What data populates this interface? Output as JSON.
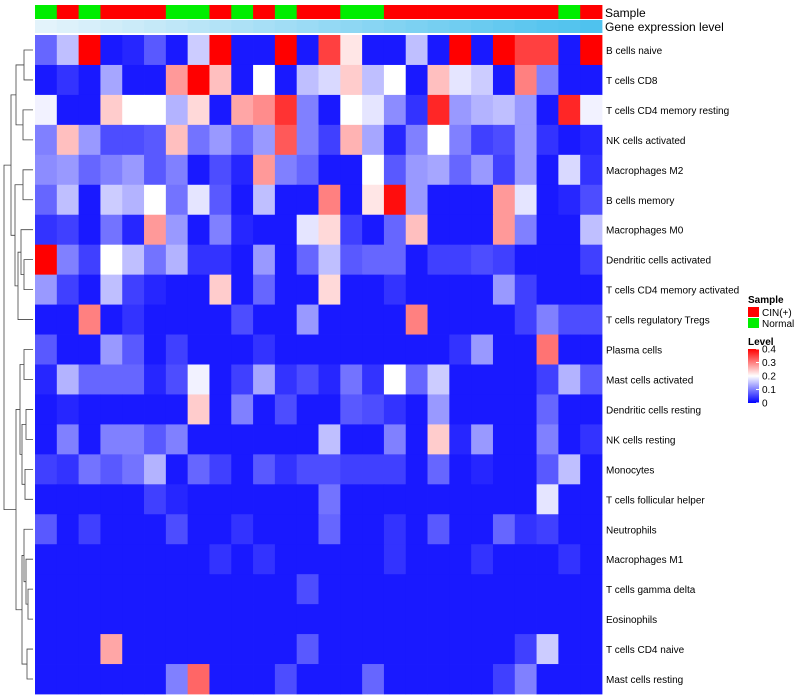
{
  "chart_data": {
    "type": "heatmap",
    "title": "",
    "annotation_tracks": [
      {
        "name": "Sample"
      },
      {
        "name": "Gene expression level"
      }
    ],
    "rows": [
      "B cells naive",
      "T cells CD8",
      "T cells CD4 memory resting",
      "NK cells activated",
      "Macrophages M2",
      "B cells memory",
      "Macrophages M0",
      "Dendritic cells activated",
      "T cells CD4 memory activated",
      "T cells regulatory  Tregs",
      "Plasma cells",
      "Mast cells activated",
      "Dendritic cells resting",
      "NK cells resting",
      "Monocytes",
      "T cells follicular helper",
      "Neutrophils",
      "Macrophages M1",
      "T cells gamma delta",
      "Eosinophils",
      "T cells CD4 naive",
      "Mast cells resting"
    ],
    "sample_groups": [
      "Normal",
      "CIN(+)",
      "Normal",
      "CIN(+)",
      "CIN(+)",
      "CIN(+)",
      "Normal",
      "Normal",
      "CIN(+)",
      "Normal",
      "CIN(+)",
      "Normal",
      "CIN(+)",
      "CIN(+)",
      "Normal",
      "Normal",
      "CIN(+)",
      "CIN(+)",
      "CIN(+)",
      "CIN(+)",
      "CIN(+)",
      "CIN(+)",
      "CIN(+)",
      "CIN(+)",
      "Normal",
      "CIN(+)"
    ],
    "gene_expression_level": [
      0.02,
      0.06,
      0.1,
      0.14,
      0.18,
      0.22,
      0.26,
      0.3,
      0.34,
      0.38,
      0.42,
      0.46,
      0.5,
      0.54,
      0.58,
      0.62,
      0.66,
      0.7,
      0.74,
      0.78,
      0.82,
      0.86,
      0.9,
      0.94,
      0.97,
      1.0
    ],
    "values": [
      [
        0.08,
        0.15,
        0.4,
        0.02,
        0.03,
        0.07,
        0.02,
        0.16,
        0.4,
        0.02,
        0.02,
        0.4,
        0.02,
        0.35,
        0.22,
        0.02,
        0.02,
        0.15,
        0.02,
        0.4,
        0.02,
        0.4,
        0.35,
        0.35,
        0.02,
        0.4
      ],
      [
        0.02,
        0.04,
        0.02,
        0.13,
        0.02,
        0.02,
        0.28,
        0.4,
        0.25,
        0.02,
        0.2,
        0.02,
        0.15,
        0.17,
        0.24,
        0.15,
        0.2,
        0.02,
        0.25,
        0.18,
        0.16,
        0.02,
        0.3,
        0.1,
        0.02,
        0.02
      ],
      [
        0.19,
        0.02,
        0.02,
        0.24,
        0.2,
        0.2,
        0.14,
        0.23,
        0.02,
        0.27,
        0.29,
        0.36,
        0.1,
        0.02,
        0.2,
        0.18,
        0.11,
        0.04,
        0.37,
        0.12,
        0.14,
        0.15,
        0.12,
        0.02,
        0.37,
        0.19
      ],
      [
        0.1,
        0.25,
        0.12,
        0.06,
        0.06,
        0.07,
        0.25,
        0.09,
        0.12,
        0.08,
        0.12,
        0.33,
        0.1,
        0.05,
        0.26,
        0.13,
        0.03,
        0.1,
        0.2,
        0.1,
        0.05,
        0.06,
        0.12,
        0.04,
        0.02,
        0.03
      ],
      [
        0.11,
        0.12,
        0.08,
        0.1,
        0.12,
        0.07,
        0.1,
        0.02,
        0.06,
        0.03,
        0.28,
        0.1,
        0.08,
        0.02,
        0.02,
        0.2,
        0.07,
        0.12,
        0.13,
        0.08,
        0.12,
        0.05,
        0.12,
        0.02,
        0.17,
        0.04
      ],
      [
        0.08,
        0.15,
        0.02,
        0.16,
        0.14,
        0.2,
        0.09,
        0.18,
        0.07,
        0.02,
        0.15,
        0.02,
        0.02,
        0.3,
        0.02,
        0.22,
        0.39,
        0.12,
        0.02,
        0.02,
        0.02,
        0.28,
        0.18,
        0.02,
        0.03,
        0.06
      ],
      [
        0.04,
        0.05,
        0.02,
        0.09,
        0.03,
        0.28,
        0.12,
        0.02,
        0.1,
        0.03,
        0.02,
        0.02,
        0.18,
        0.23,
        0.05,
        0.02,
        0.08,
        0.25,
        0.02,
        0.02,
        0.02,
        0.28,
        0.1,
        0.02,
        0.02,
        0.15
      ],
      [
        0.4,
        0.1,
        0.05,
        0.2,
        0.15,
        0.09,
        0.14,
        0.04,
        0.04,
        0.02,
        0.12,
        0.02,
        0.08,
        0.15,
        0.07,
        0.08,
        0.08,
        0.02,
        0.05,
        0.05,
        0.06,
        0.05,
        0.02,
        0.02,
        0.02,
        0.05
      ],
      [
        0.12,
        0.05,
        0.02,
        0.15,
        0.05,
        0.03,
        0.02,
        0.02,
        0.24,
        0.02,
        0.08,
        0.02,
        0.02,
        0.23,
        0.02,
        0.02,
        0.04,
        0.02,
        0.02,
        0.02,
        0.02,
        0.12,
        0.05,
        0.02,
        0.02,
        0.02
      ],
      [
        0.02,
        0.02,
        0.3,
        0.02,
        0.04,
        0.02,
        0.02,
        0.02,
        0.02,
        0.06,
        0.02,
        0.02,
        0.12,
        0.02,
        0.02,
        0.02,
        0.02,
        0.3,
        0.02,
        0.02,
        0.02,
        0.02,
        0.05,
        0.1,
        0.06,
        0.06
      ],
      [
        0.07,
        0.02,
        0.02,
        0.12,
        0.07,
        0.02,
        0.05,
        0.02,
        0.02,
        0.02,
        0.04,
        0.02,
        0.02,
        0.02,
        0.02,
        0.02,
        0.02,
        0.02,
        0.02,
        0.04,
        0.12,
        0.02,
        0.02,
        0.31,
        0.02,
        0.02
      ],
      [
        0.03,
        0.14,
        0.08,
        0.08,
        0.08,
        0.03,
        0.06,
        0.19,
        0.02,
        0.05,
        0.13,
        0.04,
        0.06,
        0.03,
        0.09,
        0.04,
        0.2,
        0.08,
        0.16,
        0.02,
        0.02,
        0.02,
        0.02,
        0.05,
        0.14,
        0.07
      ],
      [
        0.02,
        0.03,
        0.02,
        0.02,
        0.02,
        0.02,
        0.02,
        0.24,
        0.02,
        0.1,
        0.02,
        0.06,
        0.02,
        0.02,
        0.07,
        0.06,
        0.04,
        0.02,
        0.12,
        0.02,
        0.02,
        0.02,
        0.02,
        0.08,
        0.02,
        0.02
      ],
      [
        0.02,
        0.1,
        0.02,
        0.1,
        0.1,
        0.07,
        0.1,
        0.02,
        0.02,
        0.02,
        0.02,
        0.02,
        0.02,
        0.15,
        0.02,
        0.02,
        0.1,
        0.02,
        0.24,
        0.03,
        0.12,
        0.02,
        0.02,
        0.1,
        0.02,
        0.04
      ],
      [
        0.05,
        0.04,
        0.09,
        0.07,
        0.09,
        0.14,
        0.02,
        0.08,
        0.05,
        0.02,
        0.07,
        0.04,
        0.06,
        0.06,
        0.05,
        0.05,
        0.05,
        0.02,
        0.08,
        0.02,
        0.03,
        0.02,
        0.02,
        0.07,
        0.15,
        0.02
      ],
      [
        0.02,
        0.02,
        0.02,
        0.02,
        0.02,
        0.05,
        0.03,
        0.02,
        0.02,
        0.02,
        0.02,
        0.02,
        0.02,
        0.09,
        0.02,
        0.02,
        0.02,
        0.02,
        0.02,
        0.02,
        0.02,
        0.02,
        0.02,
        0.18,
        0.02,
        0.02
      ],
      [
        0.07,
        0.02,
        0.05,
        0.02,
        0.02,
        0.02,
        0.06,
        0.02,
        0.02,
        0.04,
        0.02,
        0.02,
        0.02,
        0.08,
        0.02,
        0.02,
        0.04,
        0.02,
        0.07,
        0.02,
        0.02,
        0.08,
        0.04,
        0.05,
        0.02,
        0.02
      ],
      [
        0.02,
        0.02,
        0.02,
        0.02,
        0.02,
        0.02,
        0.02,
        0.02,
        0.04,
        0.02,
        0.04,
        0.02,
        0.02,
        0.02,
        0.02,
        0.02,
        0.04,
        0.02,
        0.02,
        0.02,
        0.04,
        0.02,
        0.02,
        0.02,
        0.04,
        0.02
      ],
      [
        0.02,
        0.02,
        0.02,
        0.02,
        0.02,
        0.02,
        0.02,
        0.02,
        0.02,
        0.02,
        0.02,
        0.02,
        0.06,
        0.02,
        0.02,
        0.02,
        0.02,
        0.02,
        0.02,
        0.02,
        0.02,
        0.02,
        0.02,
        0.02,
        0.02,
        0.02
      ],
      [
        0.02,
        0.02,
        0.02,
        0.02,
        0.02,
        0.02,
        0.02,
        0.02,
        0.02,
        0.02,
        0.02,
        0.02,
        0.02,
        0.02,
        0.02,
        0.02,
        0.02,
        0.02,
        0.02,
        0.02,
        0.02,
        0.02,
        0.02,
        0.02,
        0.02,
        0.02
      ],
      [
        0.02,
        0.02,
        0.02,
        0.27,
        0.02,
        0.02,
        0.02,
        0.02,
        0.02,
        0.02,
        0.02,
        0.02,
        0.07,
        0.02,
        0.02,
        0.02,
        0.02,
        0.02,
        0.02,
        0.02,
        0.02,
        0.02,
        0.05,
        0.16,
        0.02,
        0.02
      ],
      [
        0.02,
        0.02,
        0.02,
        0.02,
        0.02,
        0.02,
        0.1,
        0.32,
        0.02,
        0.02,
        0.02,
        0.06,
        0.02,
        0.02,
        0.02,
        0.08,
        0.02,
        0.02,
        0.02,
        0.02,
        0.02,
        0.05,
        0.1,
        0.02,
        0.02,
        0.02
      ]
    ],
    "legend": {
      "sample": {
        "title": "Sample",
        "entries": [
          {
            "label": "CIN(+)",
            "color": "#ff0000"
          },
          {
            "label": "Normal",
            "color": "#00ee00"
          }
        ]
      },
      "level": {
        "title": "Level",
        "ticks": [
          0,
          0.1,
          0.2,
          0.3,
          0.4
        ],
        "tick_labels": [
          "0",
          "0.1",
          "0.2",
          "0.3",
          "0.4"
        ]
      }
    },
    "value_range": [
      0,
      0.4
    ],
    "colors": {
      "low": "#0000ff",
      "mid": "#ffffff",
      "high": "#ff0000",
      "cin": "#ff0000",
      "normal": "#00ee00",
      "expr_low": "#e6f4fb",
      "expr_high": "#4fc2ee"
    }
  }
}
